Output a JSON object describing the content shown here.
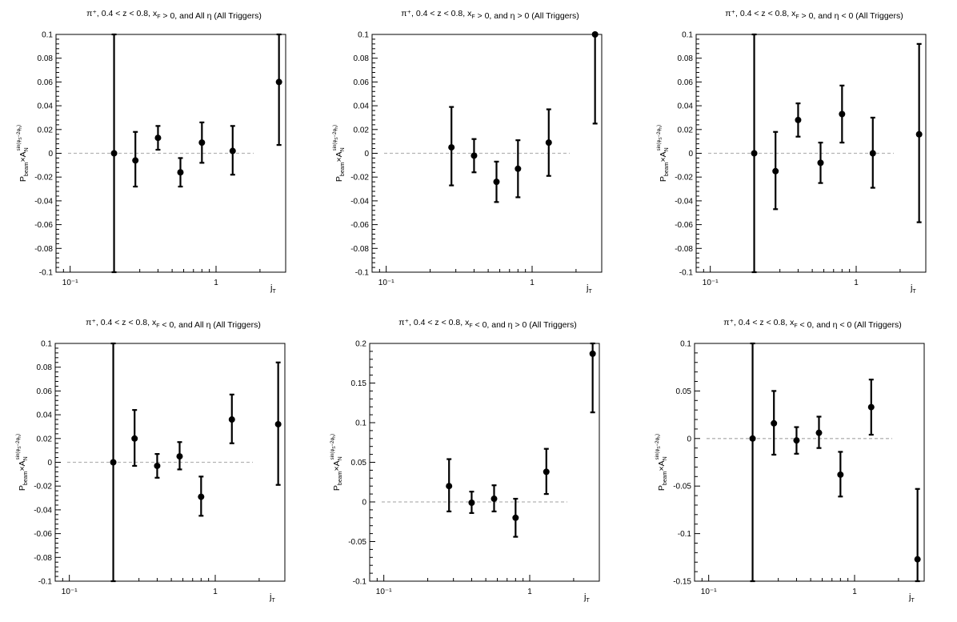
{
  "chart_data": [
    {
      "type": "scatter",
      "title": "π⁺, 0.4 < z < 0.8, x_F > 0, and All η (All Triggers)",
      "xlabel": "j_T",
      "ylabel": "P_beam × A_N^sin(φ_S−2φ_h)",
      "x_scale": "log",
      "xlim": [
        0.08,
        3.0
      ],
      "ylim": [
        -0.1,
        0.1
      ],
      "x_ticks": [
        "10⁻¹",
        "1"
      ],
      "y_ticks": [
        "-0.1",
        "-0.08",
        "-0.06",
        "-0.04",
        "-0.02",
        "0",
        "0.02",
        "0.04",
        "0.06",
        "0.08",
        "0.1"
      ],
      "reference_line": 0,
      "points": [
        {
          "x": 0.2,
          "y": 0.0,
          "err_low": 0.11,
          "err_high": 0.11
        },
        {
          "x": 0.28,
          "y": -0.006,
          "err_low": 0.022,
          "err_high": 0.024
        },
        {
          "x": 0.4,
          "y": 0.013,
          "err_low": 0.01,
          "err_high": 0.01
        },
        {
          "x": 0.57,
          "y": -0.016,
          "err_low": 0.012,
          "err_high": 0.012
        },
        {
          "x": 0.8,
          "y": 0.009,
          "err_low": 0.017,
          "err_high": 0.017
        },
        {
          "x": 1.3,
          "y": 0.002,
          "err_low": 0.02,
          "err_high": 0.021
        },
        {
          "x": 2.7,
          "y": 0.06,
          "err_low": 0.053,
          "err_high": 0.04
        }
      ]
    },
    {
      "type": "scatter",
      "title": "π⁺, 0.4 < z < 0.8, x_F > 0, and η > 0 (All Triggers)",
      "xlabel": "j_T",
      "ylabel": "P_beam × A_N^sin(φ_S−2φ_h)",
      "x_scale": "log",
      "xlim": [
        0.08,
        3.0
      ],
      "ylim": [
        -0.1,
        0.1
      ],
      "x_ticks": [
        "10⁻¹",
        "1"
      ],
      "y_ticks": [
        "-0.1",
        "-0.08",
        "-0.06",
        "-0.04",
        "-0.02",
        "0",
        "0.02",
        "0.04",
        "0.06",
        "0.08",
        "0.1"
      ],
      "reference_line": 0,
      "points": [
        {
          "x": 0.28,
          "y": 0.005,
          "err_low": 0.032,
          "err_high": 0.034
        },
        {
          "x": 0.4,
          "y": -0.002,
          "err_low": 0.014,
          "err_high": 0.014
        },
        {
          "x": 0.57,
          "y": -0.024,
          "err_low": 0.017,
          "err_high": 0.017
        },
        {
          "x": 0.8,
          "y": -0.013,
          "err_low": 0.024,
          "err_high": 0.024
        },
        {
          "x": 1.3,
          "y": 0.009,
          "err_low": 0.028,
          "err_high": 0.028
        },
        {
          "x": 2.7,
          "y": 0.1,
          "err_low": 0.075,
          "err_high": 0.01
        }
      ]
    },
    {
      "type": "scatter",
      "title": "π⁺, 0.4 < z < 0.8, x_F > 0, and η < 0 (All Triggers)",
      "xlabel": "j_T",
      "ylabel": "P_beam × A_N^sin(φ_S−2φ_h)",
      "x_scale": "log",
      "xlim": [
        0.08,
        3.0
      ],
      "ylim": [
        -0.1,
        0.1
      ],
      "x_ticks": [
        "10⁻¹",
        "1"
      ],
      "y_ticks": [
        "-0.1",
        "-0.08",
        "-0.06",
        "-0.04",
        "-0.02",
        "0",
        "0.02",
        "0.04",
        "0.06",
        "0.08",
        "0.1"
      ],
      "reference_line": 0,
      "points": [
        {
          "x": 0.2,
          "y": 0.0,
          "err_low": 0.11,
          "err_high": 0.11
        },
        {
          "x": 0.28,
          "y": -0.015,
          "err_low": 0.032,
          "err_high": 0.033
        },
        {
          "x": 0.4,
          "y": 0.028,
          "err_low": 0.014,
          "err_high": 0.014
        },
        {
          "x": 0.57,
          "y": -0.008,
          "err_low": 0.017,
          "err_high": 0.017
        },
        {
          "x": 0.8,
          "y": 0.033,
          "err_low": 0.024,
          "err_high": 0.024
        },
        {
          "x": 1.3,
          "y": 0.0,
          "err_low": 0.029,
          "err_high": 0.03
        },
        {
          "x": 2.7,
          "y": 0.016,
          "err_low": 0.074,
          "err_high": 0.076
        }
      ]
    },
    {
      "type": "scatter",
      "title": "π⁺, 0.4 < z < 0.8, x_F < 0, and All η (All Triggers)",
      "xlabel": "j_T",
      "ylabel": "P_beam × A_N^sin(φ_S−2φ_h)",
      "x_scale": "log",
      "xlim": [
        0.08,
        3.0
      ],
      "ylim": [
        -0.1,
        0.1
      ],
      "x_ticks": [
        "10⁻¹",
        "1"
      ],
      "y_ticks": [
        "-0.1",
        "-0.08",
        "-0.06",
        "-0.04",
        "-0.02",
        "0",
        "0.02",
        "0.04",
        "0.06",
        "0.08",
        "0.1"
      ],
      "reference_line": 0,
      "points": [
        {
          "x": 0.2,
          "y": 0.0,
          "err_low": 0.11,
          "err_high": 0.11
        },
        {
          "x": 0.28,
          "y": 0.02,
          "err_low": 0.023,
          "err_high": 0.024
        },
        {
          "x": 0.4,
          "y": -0.003,
          "err_low": 0.01,
          "err_high": 0.01
        },
        {
          "x": 0.57,
          "y": 0.005,
          "err_low": 0.011,
          "err_high": 0.012
        },
        {
          "x": 0.8,
          "y": -0.029,
          "err_low": 0.016,
          "err_high": 0.017
        },
        {
          "x": 1.3,
          "y": 0.036,
          "err_low": 0.02,
          "err_high": 0.021
        },
        {
          "x": 2.7,
          "y": 0.032,
          "err_low": 0.051,
          "err_high": 0.052
        }
      ]
    },
    {
      "type": "scatter",
      "title": "π⁺, 0.4 < z < 0.8, x_F < 0, and η > 0 (All Triggers)",
      "xlabel": "j_T",
      "ylabel": "P_beam × A_N^sin(φ_S−2φ_h)",
      "x_scale": "log",
      "xlim": [
        0.08,
        3.0
      ],
      "ylim": [
        -0.1,
        0.2
      ],
      "x_ticks": [
        "10⁻¹",
        "1"
      ],
      "y_ticks": [
        "-0.1",
        "-0.05",
        "0",
        "0.05",
        "0.1",
        "0.15",
        "0.2"
      ],
      "reference_line": 0,
      "points": [
        {
          "x": 0.28,
          "y": 0.02,
          "err_low": 0.032,
          "err_high": 0.034
        },
        {
          "x": 0.4,
          "y": -0.001,
          "err_low": 0.013,
          "err_high": 0.014
        },
        {
          "x": 0.57,
          "y": 0.004,
          "err_low": 0.016,
          "err_high": 0.017
        },
        {
          "x": 0.8,
          "y": -0.02,
          "err_low": 0.024,
          "err_high": 0.024
        },
        {
          "x": 1.3,
          "y": 0.038,
          "err_low": 0.028,
          "err_high": 0.029
        },
        {
          "x": 2.7,
          "y": 0.187,
          "err_low": 0.074,
          "err_high": 0.015
        }
      ]
    },
    {
      "type": "scatter",
      "title": "π⁺, 0.4 < z < 0.8, x_F < 0, and η < 0 (All Triggers)",
      "xlabel": "j_T",
      "ylabel": "P_beam × A_N^sin(φ_S−2φ_h)",
      "x_scale": "log",
      "xlim": [
        0.08,
        3.0
      ],
      "ylim": [
        -0.15,
        0.1
      ],
      "x_ticks": [
        "10⁻¹",
        "1"
      ],
      "y_ticks": [
        "-0.15",
        "-0.1",
        "-0.05",
        "0",
        "0.05",
        "0.1"
      ],
      "reference_line": 0,
      "points": [
        {
          "x": 0.2,
          "y": 0.0,
          "err_low": 0.16,
          "err_high": 0.11
        },
        {
          "x": 0.28,
          "y": 0.016,
          "err_low": 0.033,
          "err_high": 0.034
        },
        {
          "x": 0.4,
          "y": -0.002,
          "err_low": 0.014,
          "err_high": 0.014
        },
        {
          "x": 0.57,
          "y": 0.006,
          "err_low": 0.016,
          "err_high": 0.017
        },
        {
          "x": 0.8,
          "y": -0.038,
          "err_low": 0.023,
          "err_high": 0.024
        },
        {
          "x": 1.3,
          "y": 0.033,
          "err_low": 0.029,
          "err_high": 0.029
        },
        {
          "x": 2.7,
          "y": -0.127,
          "err_low": 0.03,
          "err_high": 0.074
        }
      ]
    }
  ]
}
